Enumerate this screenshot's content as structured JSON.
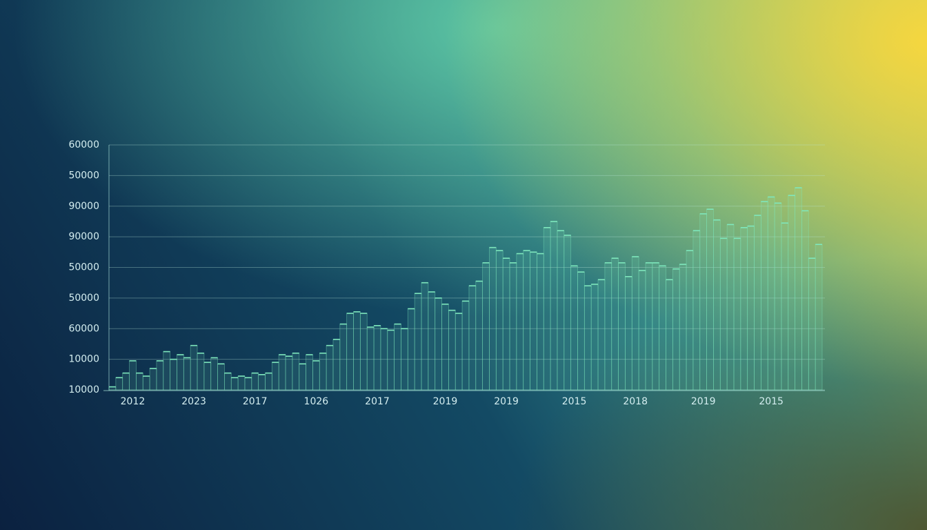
{
  "chart_data": {
    "type": "bar",
    "color": "#7fe8bd",
    "categories": [
      null,
      null,
      null,
      "2012",
      null,
      null,
      null,
      null,
      null,
      null,
      null,
      null,
      "2023",
      null,
      null,
      null,
      null,
      null,
      null,
      null,
      null,
      "2017",
      null,
      null,
      null,
      null,
      null,
      null,
      null,
      null,
      "1026",
      null,
      null,
      null,
      null,
      null,
      null,
      null,
      null,
      "2017",
      null,
      null,
      null,
      null,
      null,
      null,
      null,
      null,
      null,
      "2019",
      null,
      null,
      null,
      null,
      null,
      null,
      null,
      null,
      "2019",
      null,
      null,
      null,
      null,
      null,
      null,
      null,
      null,
      null,
      "2015",
      null,
      null,
      null,
      null,
      null,
      null,
      null,
      null,
      "2018",
      null,
      null,
      null,
      null,
      null,
      null,
      null,
      null,
      null,
      "2019",
      null,
      null,
      null,
      null,
      null,
      null,
      null,
      null,
      null,
      "2015",
      null,
      null,
      null,
      null,
      null,
      null,
      null
    ],
    "values": [
      0.1,
      0.4,
      0.55,
      0.95,
      0.55,
      0.45,
      0.7,
      0.95,
      1.25,
      1.0,
      1.15,
      1.05,
      1.45,
      1.2,
      0.9,
      1.05,
      0.85,
      0.55,
      0.4,
      0.45,
      0.4,
      0.55,
      0.5,
      0.55,
      0.9,
      1.15,
      1.1,
      1.2,
      0.85,
      1.15,
      0.95,
      1.2,
      1.45,
      1.65,
      2.15,
      2.5,
      2.55,
      2.5,
      2.05,
      2.1,
      2.0,
      1.95,
      2.15,
      2.0,
      2.65,
      3.15,
      3.5,
      3.2,
      3.0,
      2.8,
      2.6,
      2.5,
      2.9,
      3.4,
      3.55,
      4.15,
      4.65,
      4.55,
      4.3,
      4.15,
      4.45,
      4.55,
      4.5,
      4.45,
      5.3,
      5.5,
      5.2,
      5.05,
      4.05,
      3.85,
      3.4,
      3.45,
      3.6,
      4.15,
      4.3,
      4.15,
      3.7,
      4.35,
      3.9,
      4.15,
      4.15,
      4.05,
      3.6,
      3.95,
      4.1,
      4.55,
      5.2,
      5.75,
      5.9,
      5.55,
      4.95,
      5.4,
      4.95,
      5.3,
      5.35,
      5.7,
      6.15,
      6.3,
      6.1,
      5.45,
      6.35,
      6.6,
      5.85,
      4.3,
      4.75
    ],
    "ylim": [
      0,
      8
    ],
    "yticks": [
      {
        "value": 0,
        "label": "10000"
      },
      {
        "value": 1,
        "label": "10000"
      },
      {
        "value": 2,
        "label": "60000"
      },
      {
        "value": 3,
        "label": "50000"
      },
      {
        "value": 4,
        "label": "50000"
      },
      {
        "value": 5,
        "label": "90000"
      },
      {
        "value": 6,
        "label": "90000"
      },
      {
        "value": 7,
        "label": "50000"
      },
      {
        "value": 8,
        "label": "60000"
      }
    ],
    "grid": true
  }
}
